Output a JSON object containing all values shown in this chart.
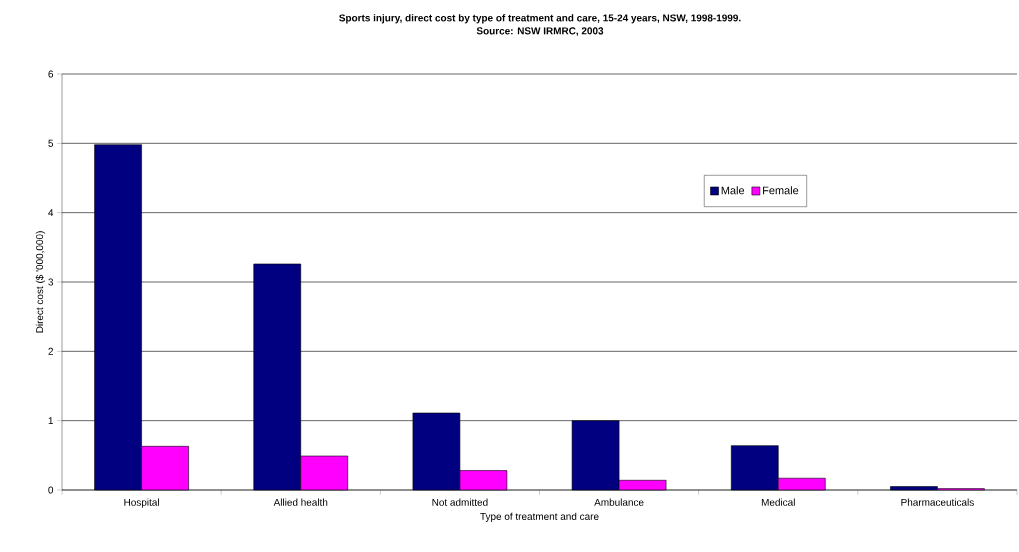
{
  "chart_data": {
    "type": "bar",
    "title": "Sports injury, direct cost by type of treatment and care, 15-24 years, NSW, 1998-1999.",
    "subtitle": "Source: NSW IRMRC, 2003",
    "xlabel": "Type of treatment and care",
    "ylabel": "Direct cost ($ '000,000)",
    "categories": [
      "Hospital",
      "Allied health",
      "Not admitted",
      "Ambulance",
      "Medical",
      "Pharmaceuticals"
    ],
    "series": [
      {
        "name": "Male",
        "color": "#000080",
        "values": [
          4.98,
          3.26,
          1.11,
          1.0,
          0.64,
          0.05
        ]
      },
      {
        "name": "Female",
        "color": "#ff00ff",
        "values": [
          0.63,
          0.49,
          0.28,
          0.14,
          0.17,
          0.02
        ]
      }
    ],
    "ylim": [
      0,
      6
    ],
    "yticks": [
      0,
      1,
      2,
      3,
      4,
      5,
      6
    ],
    "grid": "y",
    "legend": "top right"
  }
}
